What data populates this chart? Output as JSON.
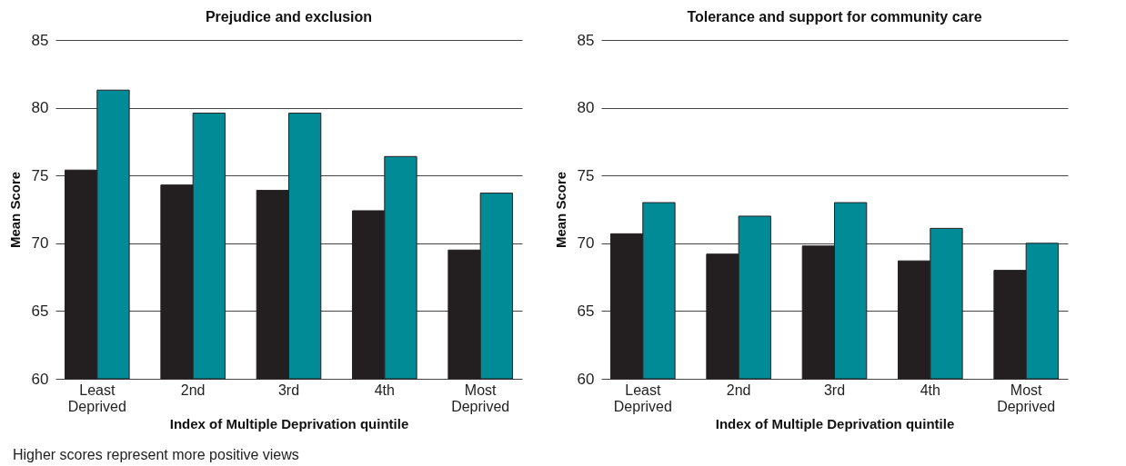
{
  "chart_data": [
    {
      "type": "bar",
      "title": "Prejudice and exclusion",
      "xlabel": "Index of Multiple Deprivation quintile",
      "ylabel": "Mean Score",
      "categories": [
        "Least Deprived",
        "2nd",
        "3rd",
        "4th",
        "Most Deprived"
      ],
      "series": [
        {
          "color": "#231f20",
          "values": [
            75.4,
            74.3,
            73.9,
            72.4,
            69.5
          ]
        },
        {
          "color": "#008b96",
          "values": [
            81.3,
            79.6,
            79.6,
            76.4,
            73.7
          ]
        }
      ],
      "ylim": [
        60,
        85
      ],
      "yticks": [
        60,
        65,
        70,
        75,
        80,
        85
      ],
      "grid": "y",
      "annotations": [
        "Higher scores represent more positive views"
      ]
    },
    {
      "type": "bar",
      "title": "Tolerance and support for community care",
      "xlabel": "Index of Multiple Deprivation quintile",
      "ylabel": "Mean Score",
      "categories": [
        "Least Deprived",
        "2nd",
        "3rd",
        "4th",
        "Most Deprived"
      ],
      "series": [
        {
          "color": "#231f20",
          "values": [
            70.7,
            69.2,
            69.8,
            68.7,
            68.0
          ]
        },
        {
          "color": "#008b96",
          "values": [
            73.0,
            72.0,
            73.0,
            71.1,
            70.0
          ]
        }
      ],
      "ylim": [
        60,
        85
      ],
      "yticks": [
        60,
        65,
        70,
        75,
        80,
        85
      ],
      "grid": "y"
    }
  ]
}
